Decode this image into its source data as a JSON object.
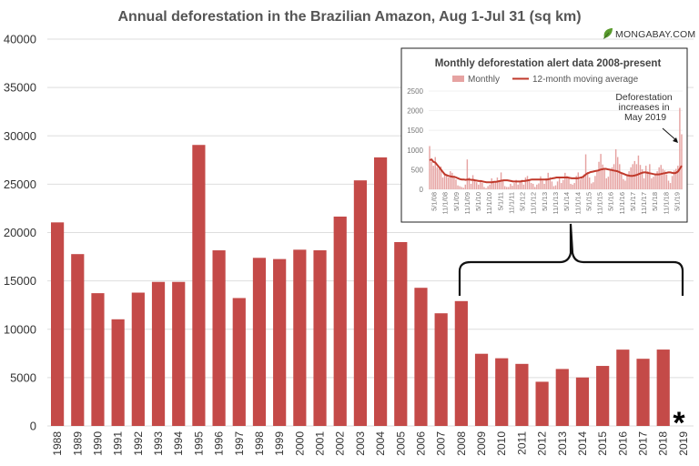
{
  "brand": {
    "text": "MONGABAY.COM",
    "icon": "leaf-icon",
    "accent": "#5a9b2e"
  },
  "marker": "*",
  "chart_data": [
    {
      "type": "bar",
      "title": "Annual deforestation in the Brazilian Amazon, Aug 1-Jul 31 (sq km)",
      "categories": [
        "1988",
        "1989",
        "1990",
        "1991",
        "1992",
        "1993",
        "1994",
        "1995",
        "1996",
        "1997",
        "1998",
        "1999",
        "2000",
        "2001",
        "2002",
        "2003",
        "2004",
        "2005",
        "2006",
        "2007",
        "2008",
        "2009",
        "2010",
        "2011",
        "2012",
        "2013",
        "2014",
        "2015",
        "2016",
        "2017",
        "2018",
        "2019"
      ],
      "values": [
        21050,
        17770,
        13730,
        11030,
        13786,
        14896,
        14896,
        29059,
        18161,
        13227,
        17383,
        17259,
        18226,
        18165,
        21651,
        25396,
        27772,
        19014,
        14286,
        11651,
        12911,
        7464,
        7000,
        6418,
        4571,
        5891,
        5012,
        6207,
        7893,
        6947,
        7900,
        null
      ],
      "ylim": [
        0,
        40000
      ],
      "yticks": [
        "0",
        "5000",
        "10000",
        "15000",
        "20000",
        "25000",
        "30000",
        "35000",
        "40000"
      ],
      "color": "#c44a48",
      "grid": true
    },
    {
      "type": "bar+line",
      "title": "Monthly deforestation alert data 2008-present",
      "legend": [
        "Monthly",
        "12-month moving average"
      ],
      "legend_placement": "top",
      "ylim": [
        0,
        2500
      ],
      "yticks": [
        "0",
        "500",
        "1000",
        "1500",
        "2000",
        "2500"
      ],
      "x_labels": [
        "5/1/08",
        "11/1/08",
        "5/1/09",
        "11/1/09",
        "5/1/10",
        "11/1/10",
        "5/1/11",
        "11/1/11",
        "5/1/12",
        "11/1/12",
        "5/1/13",
        "11/1/13",
        "5/1/14",
        "11/1/14",
        "5/1/15",
        "11/1/15",
        "5/1/16",
        "11/1/16",
        "5/1/17",
        "11/1/17",
        "5/1/18",
        "11/1/18",
        "5/1/19"
      ],
      "monthly": [
        1100,
        700,
        600,
        820,
        560,
        520,
        580,
        300,
        420,
        380,
        300,
        460,
        420,
        340,
        250,
        100,
        80,
        60,
        40,
        120,
        760,
        300,
        140,
        360,
        250,
        180,
        120,
        220,
        160,
        60,
        30,
        80,
        120,
        280,
        180,
        200,
        300,
        220,
        430,
        220,
        80,
        60,
        60,
        140,
        90,
        160,
        240,
        120,
        200,
        240,
        120,
        300,
        340,
        220,
        160,
        140,
        60,
        120,
        150,
        330,
        220,
        140,
        280,
        420,
        310,
        200,
        80,
        100,
        200,
        280,
        160,
        240,
        420,
        340,
        300,
        140,
        120,
        160,
        340,
        430,
        250,
        320,
        380,
        890,
        440,
        300,
        150,
        180,
        340,
        470,
        700,
        900,
        630,
        520,
        280,
        320,
        480,
        560,
        640,
        1020,
        820,
        640,
        420,
        260,
        220,
        380,
        460,
        560,
        640,
        720,
        640,
        860,
        620,
        510,
        280,
        600,
        460,
        640,
        280,
        320,
        380,
        460,
        560,
        620,
        520,
        480,
        380,
        220,
        160,
        340,
        480,
        520,
        600,
        2070,
        1400
      ],
      "moving_average": [
        740,
        760,
        700,
        680,
        620,
        560,
        500,
        440,
        380,
        360,
        340,
        330,
        320,
        320,
        300,
        280,
        260,
        250,
        250,
        240,
        250,
        250,
        240,
        240,
        230,
        220,
        210,
        210,
        200,
        190,
        180,
        180,
        180,
        180,
        190,
        190,
        200,
        210,
        220,
        230,
        230,
        230,
        220,
        210,
        200,
        200,
        200,
        200,
        200,
        210,
        210,
        220,
        230,
        240,
        250,
        250,
        250,
        250,
        250,
        250,
        250,
        250,
        250,
        260,
        270,
        280,
        290,
        300,
        300,
        300,
        300,
        300,
        300,
        300,
        290,
        280,
        280,
        280,
        280,
        290,
        300,
        320,
        360,
        400,
        420,
        440,
        450,
        460,
        470,
        480,
        500,
        510,
        520,
        520,
        510,
        500,
        490,
        480,
        470,
        460,
        440,
        420,
        400,
        380,
        360,
        350,
        340,
        340,
        350,
        360,
        380,
        400,
        420,
        430,
        430,
        420,
        410,
        400,
        390,
        380,
        380,
        380,
        390,
        400,
        410,
        420,
        430,
        430,
        420,
        410,
        420,
        450,
        520,
        600
      ],
      "annotation": "Deforestation increases in May 2019",
      "bar_color": "#e6a3a2",
      "line_color": "#c0392b"
    }
  ]
}
